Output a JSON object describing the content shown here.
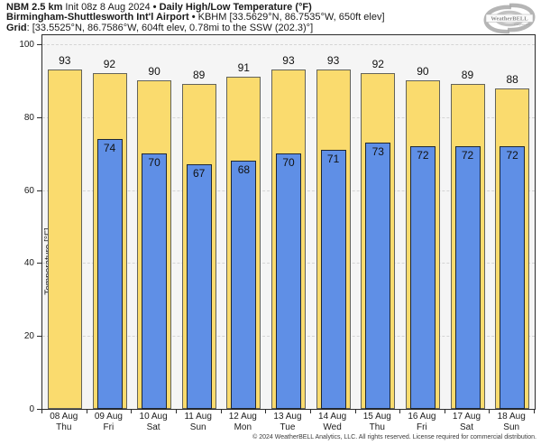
{
  "header": {
    "model": "NBM 2.5 km",
    "init": " Init 08z 8 Aug 2024 ",
    "sep": "•",
    "product": " Daily High/Low Temperature (°F)",
    "station_name": "Birmingham-Shuttlesworth Int'l Airport",
    "station_sep": " • ",
    "station_details": "KBHM [33.5629°N, 86.7535°W, 650ft elev]",
    "grid_label": "Grid",
    "grid_details": ": [33.5525°N, 86.7586°W, 604ft elev, 0.78mi to the SSW (202.3)°]"
  },
  "logo": {
    "brand": "WeatherBELL",
    "sub": "Analytics LLC"
  },
  "chart_data": {
    "type": "bar",
    "title": "Daily High/Low Temperature (°F)",
    "ylabel": "Temperature [°F]",
    "ylim": [
      0,
      104
    ],
    "yticks": [
      0,
      20,
      40,
      60,
      80,
      100
    ],
    "grid": "horizontal-dashed",
    "legend_position": "none",
    "categories": [
      "08 Aug",
      "09 Aug",
      "10 Aug",
      "11 Aug",
      "12 Aug",
      "13 Aug",
      "14 Aug",
      "15 Aug",
      "16 Aug",
      "17 Aug",
      "18 Aug"
    ],
    "weekdays": [
      "Thu",
      "Fri",
      "Sat",
      "Sun",
      "Mon",
      "Tue",
      "Wed",
      "Thu",
      "Fri",
      "Sat",
      "Sun"
    ],
    "series": [
      {
        "name": "Daily High",
        "color": "#fadb6e",
        "values": [
          93,
          92,
          90,
          89,
          91,
          93,
          93,
          92,
          90,
          89,
          88
        ]
      },
      {
        "name": "Daily Low",
        "color": "#5f8fe6",
        "values": [
          null,
          74,
          70,
          67,
          68,
          70,
          71,
          73,
          72,
          72,
          72
        ]
      }
    ]
  },
  "colors": {
    "high_fill": "#fadb6e",
    "high_border": "#63635a",
    "low_fill": "#5f8fe6",
    "low_border": "#1f2733",
    "plot_bg": "#f5f5f5",
    "gridline": "#d5d5d5",
    "axis": "#2b2b2b"
  },
  "footer": "© 2024 WeatherBELL Analytics, LLC. All rights reserved. License required for commercial distribution."
}
